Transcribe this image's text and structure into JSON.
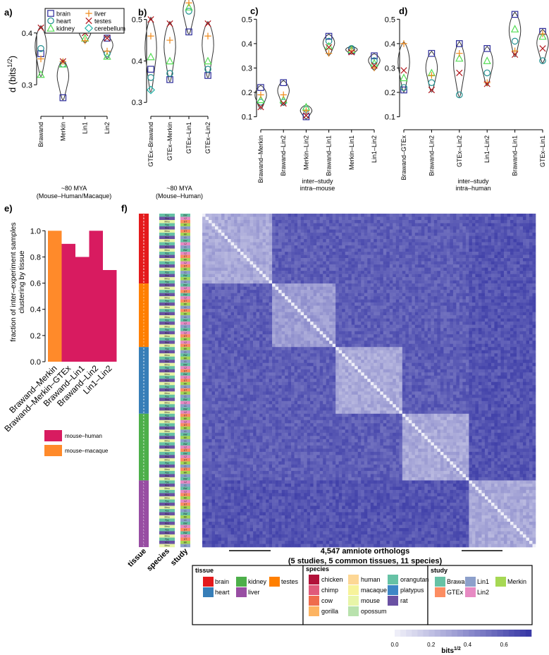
{
  "colors": {
    "brain": "#2b2b9a",
    "heart": "#1f8f8f",
    "kidney": "#55dd55",
    "liver": "#f08a1a",
    "testes": "#b0141a",
    "cerebellum": "#21b3a8",
    "heat_low": "#eeeef8",
    "heat_high": "#3a3aa6"
  },
  "panel_labels": [
    "a)",
    "b)",
    "c)",
    "d)",
    "e)",
    "f)"
  ],
  "legend_abcd": {
    "items": [
      {
        "label": "brain",
        "marker": "square",
        "color": "#2b2b9a"
      },
      {
        "label": "liver",
        "marker": "plus",
        "color": "#f08a1a"
      },
      {
        "label": "heart",
        "marker": "circle",
        "color": "#1f8f8f"
      },
      {
        "label": "testes",
        "marker": "x",
        "color": "#b0141a"
      },
      {
        "label": "kidney",
        "marker": "triangle",
        "color": "#55dd55"
      },
      {
        "label": "cerebellum",
        "marker": "diamond",
        "color": "#21b3a8"
      }
    ]
  },
  "chart_data": [
    {
      "id": "a",
      "type": "scatter",
      "ylabel": "d  (bits",
      "ylabel_sup": "1/2",
      "ylabel_close": ")",
      "ylim": [
        0.25,
        0.45
      ],
      "yticks": [
        0.3,
        0.4,
        0.5
      ],
      "categories": [
        "Brawand",
        "Merkin",
        "Lin1",
        "Lin2"
      ],
      "caption": [
        "~80 MYA",
        "(Mouse–Human/Macaque)"
      ],
      "points": [
        {
          "cat": "Brawand",
          "brain": 0.36,
          "heart": 0.37,
          "kidney": 0.32,
          "liver": 0.35,
          "testes": 0.41
        },
        {
          "cat": "Merkin",
          "brain": 0.275,
          "heart": 0.34,
          "kidney": 0.34,
          "liver": 0.345,
          "testes": 0.345
        },
        {
          "cat": "Lin1",
          "brain": 0.41,
          "heart": 0.41,
          "kidney": 0.39,
          "liver": 0.385,
          "testes": 0.4
        },
        {
          "cat": "Lin2",
          "brain": 0.39,
          "heart": 0.36,
          "kidney": 0.355,
          "liver": 0.365,
          "testes": 0.39
        }
      ]
    },
    {
      "id": "b",
      "type": "scatter",
      "ylim": [
        0.28,
        0.53
      ],
      "yticks": [
        0.3,
        0.4,
        0.5
      ],
      "categories": [
        "GTEx–Brawand",
        "GTEx–Merkin",
        "GTEx–Lin1",
        "GTEx–Lin2"
      ],
      "caption": [
        "~80 MYA",
        "(Mouse–Human)"
      ],
      "points": [
        {
          "cat": "GTEx–Brawand",
          "brain": 0.38,
          "heart": 0.36,
          "kidney": 0.41,
          "liver": 0.46,
          "testes": 0.5,
          "cerebellum": 0.33
        },
        {
          "cat": "GTEx–Merkin",
          "brain": 0.355,
          "heart": 0.37,
          "kidney": 0.4,
          "liver": 0.45,
          "testes": 0.49
        },
        {
          "cat": "GTEx–Lin1",
          "brain": 0.47,
          "heart": 0.52,
          "kidney": 0.53,
          "liver": 0.54,
          "testes": 0.555
        },
        {
          "cat": "GTEx–Lin2",
          "brain": 0.365,
          "heart": 0.38,
          "kidney": 0.4,
          "liver": 0.46,
          "testes": 0.49
        }
      ]
    },
    {
      "id": "c",
      "type": "scatter",
      "ylim": [
        0.07,
        0.55
      ],
      "yticks": [
        0.1,
        0.2,
        0.3,
        0.4,
        0.5
      ],
      "categories": [
        "Brawand–Merkin",
        "Brawand–Lin2",
        "Merkin–Lin2",
        "Brawand–Lin1",
        "Merkin–Lin1",
        "Lin1–Lin2"
      ],
      "caption": [
        "inter–study",
        "intra–mouse"
      ],
      "points": [
        {
          "cat": "Brawand–Merkin",
          "brain": 0.22,
          "heart": 0.16,
          "kidney": 0.17,
          "liver": 0.19,
          "testes": 0.14
        },
        {
          "cat": "Brawand–Lin2",
          "brain": 0.24,
          "heart": 0.16,
          "kidney": 0.17,
          "liver": 0.19,
          "testes": 0.155
        },
        {
          "cat": "Merkin–Lin2",
          "brain": 0.1,
          "heart": 0.13,
          "kidney": 0.14,
          "liver": 0.125,
          "testes": 0.105
        },
        {
          "cat": "Brawand–Lin1",
          "brain": 0.43,
          "heart": 0.41,
          "kidney": 0.39,
          "liver": 0.36,
          "testes": 0.385
        },
        {
          "cat": "Merkin–Lin1",
          "brain": 0.37,
          "heart": 0.38,
          "kidney": 0.375,
          "liver": 0.37,
          "testes": 0.365
        },
        {
          "cat": "Lin1–Lin2",
          "brain": 0.35,
          "heart": 0.33,
          "kidney": 0.32,
          "liver": 0.3,
          "testes": 0.31
        }
      ]
    },
    {
      "id": "d",
      "type": "scatter",
      "ylim": [
        0.07,
        0.55
      ],
      "yticks": [
        0.1,
        0.2,
        0.3,
        0.4,
        0.5
      ],
      "categories": [
        "Brawand–GTEx",
        "Brawand–Lin2",
        "GTEx–Lin2",
        "Lin1–Lin2",
        "Brawand–Lin1",
        "GTEx–Lin1"
      ],
      "caption": [
        "inter–study",
        "intra–human"
      ],
      "points": [
        {
          "cat": "Brawand–GTEx",
          "brain": 0.21,
          "heart": 0.22,
          "kidney": 0.26,
          "liver": 0.4,
          "testes": 0.29
        },
        {
          "cat": "Brawand–Lin2",
          "brain": 0.36,
          "heart": 0.24,
          "kidney": 0.28,
          "liver": 0.27,
          "testes": 0.21
        },
        {
          "cat": "GTEx–Lin2",
          "brain": 0.4,
          "heart": 0.19,
          "kidney": 0.34,
          "liver": 0.36,
          "testes": 0.28
        },
        {
          "cat": "Lin1–Lin2",
          "brain": 0.38,
          "heart": 0.28,
          "kidney": 0.33,
          "liver": 0.24,
          "testes": 0.235
        },
        {
          "cat": "Brawand–Lin1",
          "brain": 0.52,
          "heart": 0.41,
          "kidney": 0.46,
          "liver": 0.37,
          "testes": 0.355
        },
        {
          "cat": "GTEx–Lin1",
          "brain": 0.45,
          "heart": 0.33,
          "kidney": 0.43,
          "liver": 0.44,
          "testes": 0.38
        }
      ]
    },
    {
      "id": "e",
      "type": "bar",
      "ylabel": [
        "fraction of inter–experiment samples",
        "clustering by tissue"
      ],
      "ylim": [
        0,
        1.05
      ],
      "yticks": [
        0.0,
        0.2,
        0.4,
        0.6,
        0.8,
        1.0
      ],
      "categories": [
        "Brawand–Merkin",
        "Brawand–Merkin–GTEx",
        "Brawand–Lin1",
        "Brawand–Lin2",
        "Lin1–Lin2"
      ],
      "values": [
        1.0,
        0.9,
        0.8,
        1.0,
        0.7
      ],
      "bar_groups": [
        "mouse–macaque",
        "mouse–human",
        "mouse–human",
        "mouse–human",
        "mouse–human"
      ],
      "legend": [
        {
          "label": "mouse–human",
          "color": "#d81b60"
        },
        {
          "label": "mouse–macaque",
          "color": "#ff8a2a"
        }
      ]
    },
    {
      "id": "f",
      "type": "heatmap",
      "caption": [
        "4,547 amniote orthologs",
        "(5 studies, 5 common tissues, 11 species)"
      ],
      "track_labels": [
        "tissue",
        "species",
        "study"
      ],
      "colorbar": {
        "ticks": [
          "0.0",
          "0.2",
          "0.4",
          "0.6"
        ],
        "range": [
          0,
          0.75
        ],
        "label": "bits",
        "label_sup": "1/2"
      },
      "tissue_blocks": [
        {
          "tissue": "brain",
          "color": "#e41a1c",
          "n": 22
        },
        {
          "tissue": "testes",
          "color": "#ff7f00",
          "n": 20
        },
        {
          "tissue": "heart",
          "color": "#377eb8",
          "n": 21
        },
        {
          "tissue": "kidney",
          "color": "#4daf4a",
          "n": 21
        },
        {
          "tissue": "liver",
          "color": "#984ea3",
          "n": 21
        }
      ],
      "tissue_letters": {
        "brain": "B",
        "testes": "T",
        "heart": "H",
        "kidney": "K",
        "liver": "L"
      },
      "species_codes": [
        "Ppy",
        "Ptr",
        "Hsa",
        "Mmu",
        "Ggo",
        "Mml",
        "Oan",
        "Rno",
        "Mdo",
        "Bta",
        "Gga"
      ],
      "species_colors": [
        "#66c2a5",
        "#e05a7a",
        "#fdd795",
        "#e8f5a8",
        "#fdb462",
        "#f7f39a",
        "#3d86c6",
        "#6a51a3",
        "#b9e2ad",
        "#ef6c4d",
        "#b2123a"
      ],
      "study_codes": [
        "BW",
        "GT",
        "L1",
        "L2",
        "MK"
      ],
      "study_colors": [
        "#66c2a5",
        "#fc8d62",
        "#8da0cb",
        "#e78ac3",
        "#a6d854"
      ],
      "legend": {
        "tissue": {
          "title": "tissue",
          "items": [
            {
              "label": "brain",
              "color": "#e41a1c"
            },
            {
              "label": "kidney",
              "color": "#4daf4a"
            },
            {
              "label": "testes",
              "color": "#ff7f00"
            },
            {
              "label": "heart",
              "color": "#377eb8"
            },
            {
              "label": "liver",
              "color": "#984ea3"
            }
          ]
        },
        "species": {
          "title": "species",
          "items": [
            {
              "label": "chicken",
              "color": "#b2123a"
            },
            {
              "label": "human",
              "color": "#fdd795"
            },
            {
              "label": "orangutan",
              "color": "#66c2a5"
            },
            {
              "label": "chimp",
              "color": "#e05a7a"
            },
            {
              "label": "macaque",
              "color": "#f7f39a"
            },
            {
              "label": "platypus",
              "color": "#3d86c6"
            },
            {
              "label": "cow",
              "color": "#ef6c4d"
            },
            {
              "label": "mouse",
              "color": "#e8f5a8"
            },
            {
              "label": "rat",
              "color": "#6a51a3"
            },
            {
              "label": "gorilla",
              "color": "#fdb462"
            },
            {
              "label": "opossum",
              "color": "#b9e2ad"
            }
          ]
        },
        "study": {
          "title": "study",
          "items": [
            {
              "label": "Brawand",
              "color": "#66c2a5"
            },
            {
              "label": "Lin1",
              "color": "#8da0cb"
            },
            {
              "label": "Merkin",
              "color": "#a6d854"
            },
            {
              "label": "GTEx",
              "color": "#fc8d62"
            },
            {
              "label": "Lin2",
              "color": "#e78ac3"
            }
          ]
        }
      }
    }
  ]
}
